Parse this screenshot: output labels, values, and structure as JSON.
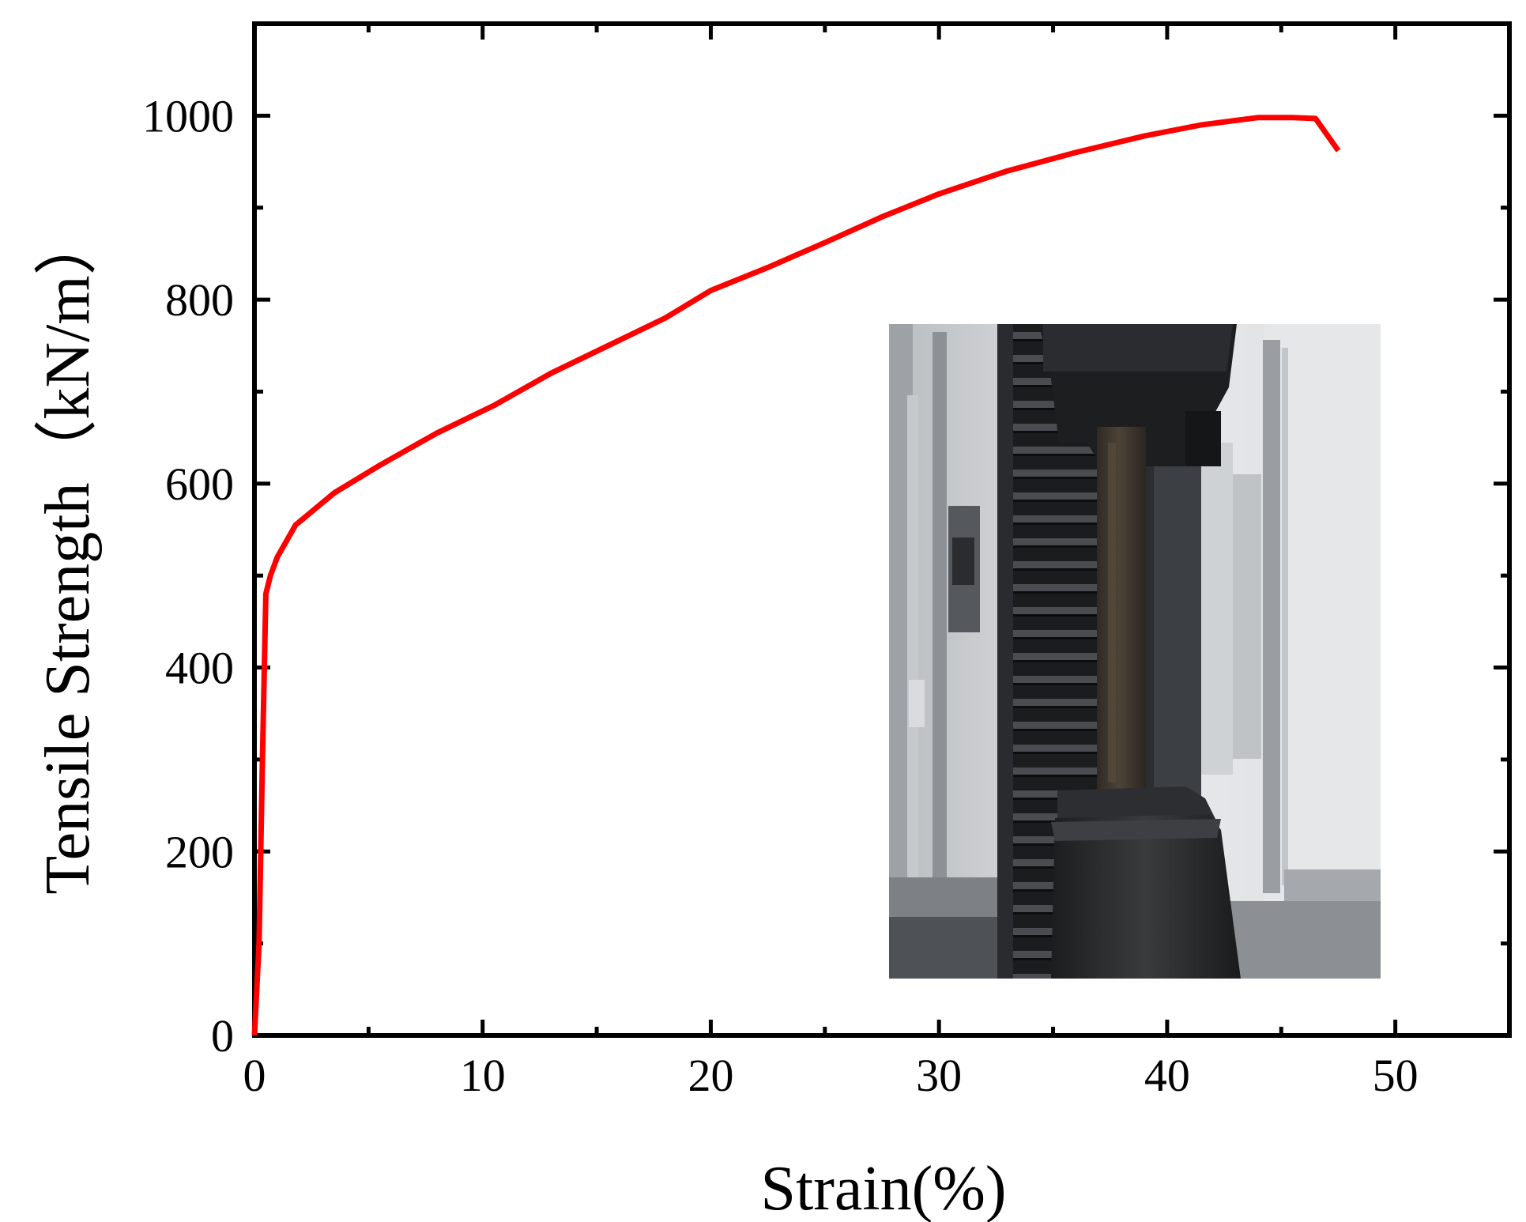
{
  "chart_data": {
    "type": "line",
    "xlabel": "Strain(%)",
    "ylabel": "Tensile Strength（kN/m）",
    "xlim": [
      0,
      55
    ],
    "ylim": [
      0,
      1100
    ],
    "x_ticks": [
      0,
      10,
      20,
      30,
      40,
      50
    ],
    "y_ticks": [
      0,
      200,
      400,
      600,
      800,
      1000
    ],
    "x_tick_labels": [
      "0",
      "10",
      "20",
      "30",
      "40",
      "50"
    ],
    "y_tick_labels": [
      "0",
      "200",
      "400",
      "600",
      "800",
      "1000"
    ],
    "grid": false,
    "series": [
      {
        "color": "#ff0000",
        "x": [
          0,
          0.2,
          0.35,
          0.5,
          0.7,
          1.0,
          1.8,
          3.5,
          5.5,
          8.0,
          10.5,
          13.0,
          15.5,
          18.0,
          20.0,
          22.5,
          25.0,
          27.5,
          30.0,
          33.0,
          36.0,
          39.0,
          41.5,
          44.0,
          45.5,
          46.5,
          47.5
        ],
        "y": [
          0,
          100,
          300,
          480,
          500,
          520,
          555,
          590,
          620,
          655,
          685,
          720,
          750,
          780,
          810,
          835,
          862,
          890,
          915,
          940,
          960,
          978,
          990,
          998,
          998,
          997,
          962
        ]
      }
    ],
    "inset": {
      "type": "photo",
      "content": "tensile-test-specimen-in-grips"
    }
  }
}
